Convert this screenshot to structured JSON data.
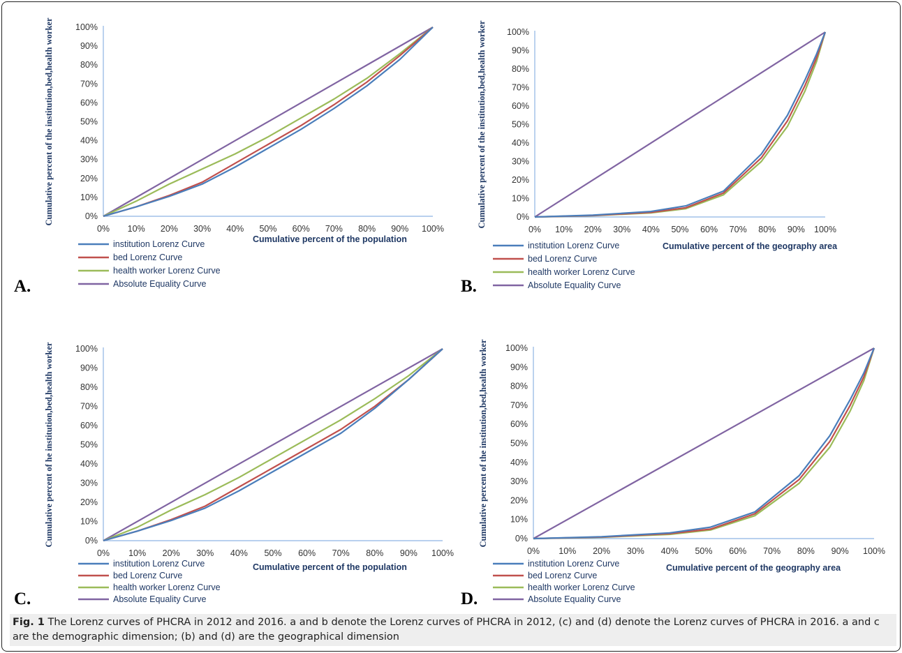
{
  "figure": {
    "caption_label": "Fig. 1",
    "caption_text": "The Lorenz curves of PHCRA in 2012 and 2016. a and b denote the Lorenz curves of PHCRA in 2012, (c) and (d) denote the Lorenz curves of PHCRA in 2016. a and c are the demographic dimension; (b) and (d) are the geographical dimension"
  },
  "colors": {
    "institution": "#4a7ebb",
    "bed": "#c0504d",
    "health_worker": "#9bbb59",
    "equality": "#8064a2",
    "axis": "#8eb4e3"
  },
  "chart_data": [
    {
      "panel": "A.",
      "type": "line",
      "xlabel": "Cumulative percent of the population",
      "ylabel": "Cumulative percent of the institution,bed,health worker",
      "xlim": [
        0,
        100
      ],
      "ylim": [
        0,
        100
      ],
      "xticks": [
        "0%",
        "10%",
        "20%",
        "30%",
        "40%",
        "50%",
        "60%",
        "70%",
        "80%",
        "90%",
        "100%"
      ],
      "yticks": [
        "0%",
        "10%",
        "20%",
        "30%",
        "40%",
        "50%",
        "60%",
        "70%",
        "80%",
        "90%",
        "100%"
      ],
      "legend": "bottom-left",
      "series": [
        {
          "name": "institution Lorenz Curve",
          "color_key": "institution",
          "x": [
            0,
            10,
            20,
            30,
            40,
            50,
            60,
            70,
            80,
            90,
            100
          ],
          "y": [
            0,
            5,
            10.5,
            17,
            26,
            36,
            46,
            57,
            69,
            83,
            100
          ]
        },
        {
          "name": "bed Lorenz Curve",
          "color_key": "bed",
          "x": [
            0,
            10,
            20,
            30,
            40,
            50,
            60,
            70,
            80,
            90,
            100
          ],
          "y": [
            0,
            5,
            11,
            18,
            28,
            38,
            48,
            59,
            71,
            85,
            100
          ]
        },
        {
          "name": "health worker Lorenz Curve",
          "color_key": "health_worker",
          "x": [
            0,
            10,
            20,
            30,
            40,
            50,
            60,
            70,
            80,
            90,
            100
          ],
          "y": [
            0,
            8,
            17,
            25,
            33,
            42,
            52,
            62,
            73,
            86,
            100
          ]
        },
        {
          "name": "Absolute Equality Curve",
          "color_key": "equality",
          "x": [
            0,
            100
          ],
          "y": [
            0,
            100
          ]
        }
      ]
    },
    {
      "panel": "B.",
      "type": "line",
      "xlabel": "Cumulative percent of the geography area",
      "ylabel": "Cumulative percent of the institution,bed,health worker",
      "xlim": [
        0,
        100
      ],
      "ylim": [
        0,
        100
      ],
      "xticks": [
        "0%",
        "10%",
        "20%",
        "30%",
        "40%",
        "50%",
        "60%",
        "70%",
        "80%",
        "90%",
        "100%"
      ],
      "yticks": [
        "0%",
        "10%",
        "20%",
        "30%",
        "40%",
        "50%",
        "60%",
        "70%",
        "80%",
        "90%",
        "100%"
      ],
      "legend": "bottom-left",
      "series": [
        {
          "name": "institution Lorenz Curve",
          "color_key": "institution",
          "x": [
            0,
            20,
            40,
            52,
            65,
            78,
            87,
            93,
            97,
            100
          ],
          "y": [
            0,
            1,
            3,
            6,
            14,
            34,
            55,
            74,
            88,
            100
          ]
        },
        {
          "name": "bed Lorenz Curve",
          "color_key": "bed",
          "x": [
            0,
            20,
            40,
            52,
            65,
            78,
            87,
            93,
            97,
            100
          ],
          "y": [
            0,
            0.8,
            2.5,
            5,
            13,
            32,
            52,
            71,
            86,
            100
          ]
        },
        {
          "name": "health worker Lorenz Curve",
          "color_key": "health_worker",
          "x": [
            0,
            20,
            40,
            52,
            65,
            78,
            87,
            93,
            97,
            100
          ],
          "y": [
            0,
            0.7,
            2.2,
            4.5,
            12,
            30,
            49,
            68,
            84,
            100
          ]
        },
        {
          "name": "Absolute Equality Curve",
          "color_key": "equality",
          "x": [
            0,
            100
          ],
          "y": [
            0,
            100
          ]
        }
      ]
    },
    {
      "panel": "C.",
      "type": "line",
      "xlabel": "Cumulative percent of the population",
      "ylabel": "Cumulative percent of he institution,bed,health worker",
      "xlim": [
        0,
        100
      ],
      "ylim": [
        0,
        100
      ],
      "xticks": [
        "0%",
        "10%",
        "20%",
        "30%",
        "40%",
        "50%",
        "60%",
        "70%",
        "80%",
        "90%",
        "100%"
      ],
      "yticks": [
        "0%",
        "10%",
        "20%",
        "30%",
        "40%",
        "50%",
        "60%",
        "70%",
        "80%",
        "90%",
        "100%"
      ],
      "legend": "bottom-left",
      "series": [
        {
          "name": "institution Lorenz Curve",
          "color_key": "institution",
          "x": [
            0,
            10,
            20,
            30,
            40,
            50,
            60,
            70,
            80,
            90,
            100
          ],
          "y": [
            0,
            5,
            10.5,
            17,
            26,
            36,
            46,
            56,
            69,
            84,
            100
          ]
        },
        {
          "name": "bed Lorenz Curve",
          "color_key": "bed",
          "x": [
            0,
            10,
            20,
            30,
            40,
            50,
            60,
            70,
            80,
            90,
            100
          ],
          "y": [
            0,
            5,
            11,
            18,
            28,
            38,
            48,
            58,
            70,
            84,
            100
          ]
        },
        {
          "name": "health worker Lorenz Curve",
          "color_key": "health_worker",
          "x": [
            0,
            10,
            20,
            30,
            40,
            50,
            60,
            70,
            80,
            90,
            100
          ],
          "y": [
            0,
            7,
            16,
            24,
            33,
            43,
            53,
            63,
            74,
            86,
            100
          ]
        },
        {
          "name": "Absolute Equality Curve",
          "color_key": "equality",
          "x": [
            0,
            100
          ],
          "y": [
            0,
            100
          ]
        }
      ]
    },
    {
      "panel": "D.",
      "type": "line",
      "xlabel": "Cumulative percent of the geography area",
      "ylabel": "Cumulative percent of the institution,bed,health worker",
      "xlim": [
        0,
        100
      ],
      "ylim": [
        0,
        100
      ],
      "xticks": [
        "0%",
        "10%",
        "20%",
        "30%",
        "40%",
        "50%",
        "60%",
        "70%",
        "80%",
        "90%",
        "100%"
      ],
      "yticks": [
        "0%",
        "10%",
        "20%",
        "30%",
        "40%",
        "50%",
        "60%",
        "70%",
        "80%",
        "90%",
        "100%"
      ],
      "legend": "bottom-left",
      "series": [
        {
          "name": "institution Lorenz Curve",
          "color_key": "institution",
          "x": [
            0,
            20,
            40,
            52,
            65,
            78,
            87,
            93,
            97,
            100
          ],
          "y": [
            0,
            1,
            3,
            6,
            14,
            33,
            54,
            73,
            87,
            100
          ]
        },
        {
          "name": "bed Lorenz Curve",
          "color_key": "bed",
          "x": [
            0,
            20,
            40,
            52,
            65,
            78,
            87,
            93,
            97,
            100
          ],
          "y": [
            0,
            0.8,
            2.6,
            5,
            13,
            31,
            51,
            70,
            85,
            100
          ]
        },
        {
          "name": "health worker Lorenz Curve",
          "color_key": "health_worker",
          "x": [
            0,
            20,
            40,
            52,
            65,
            78,
            87,
            93,
            97,
            100
          ],
          "y": [
            0,
            0.7,
            2.2,
            4.5,
            12,
            29,
            48,
            67,
            83,
            100
          ]
        },
        {
          "name": "Absolute Equality Curve",
          "color_key": "equality",
          "x": [
            0,
            100
          ],
          "y": [
            0,
            100
          ]
        }
      ]
    }
  ]
}
